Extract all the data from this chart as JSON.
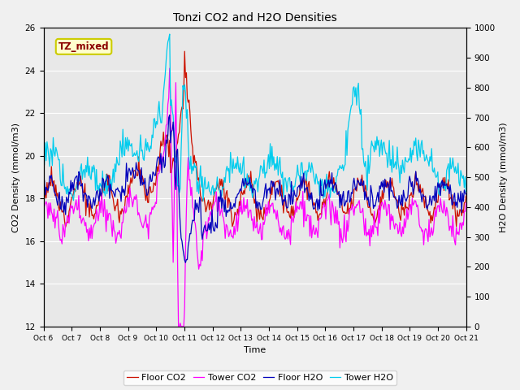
{
  "title": "Tonzi CO2 and H2O Densities",
  "xlabel": "Time",
  "ylabel_left": "CO2 Density (mmol/m3)",
  "ylabel_right": "H2O Density (mmol/m3)",
  "annotation_text": "TZ_mixed",
  "annotation_color": "#8b0000",
  "annotation_bg": "#ffffcc",
  "annotation_border": "#cccc00",
  "ylim_left": [
    12,
    26
  ],
  "ylim_right": [
    0,
    1000
  ],
  "yticks_left": [
    12,
    14,
    16,
    18,
    20,
    22,
    24,
    26
  ],
  "yticks_right": [
    0,
    100,
    200,
    300,
    400,
    500,
    600,
    700,
    800,
    900,
    1000
  ],
  "xtick_labels": [
    "Oct 6",
    "Oct 7",
    "Oct 8",
    "Oct 9",
    "Oct 10",
    "Oct 11",
    "Oct 12",
    "Oct 13",
    "Oct 14",
    "Oct 15",
    "Oct 16",
    "Oct 17",
    "Oct 18",
    "Oct 19",
    "Oct 20",
    "Oct 21"
  ],
  "colors": {
    "floor_co2": "#cc1100",
    "tower_co2": "#ff00ff",
    "floor_h2o": "#0000bb",
    "tower_h2o": "#00ccee"
  },
  "legend_labels": [
    "Floor CO2",
    "Tower CO2",
    "Floor H2O",
    "Tower H2O"
  ],
  "bg_color": "#e8e8e8",
  "fig_bg": "#f0f0f0",
  "grid_color": "#ffffff",
  "n_points": 480
}
